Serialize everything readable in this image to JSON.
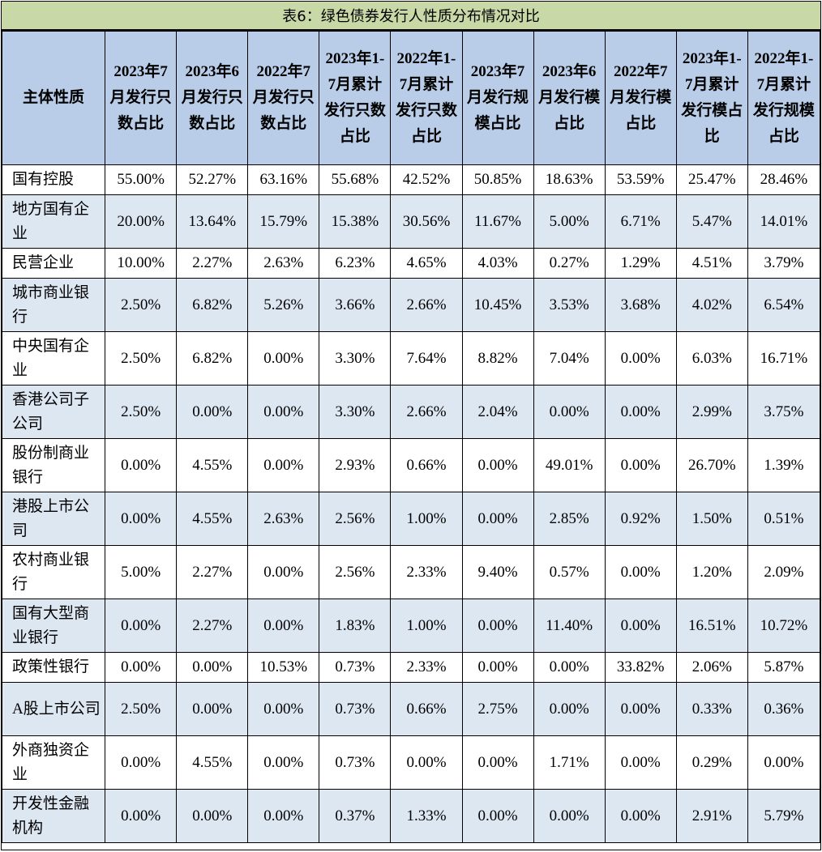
{
  "title": "表6：绿色债券发行人性质分布情况对比",
  "header_first": "主体性质",
  "columns": [
    "2023年7月发行只数占比",
    "2023年6月发行只数占比",
    "2022年7月发行只数占比",
    "2023年1-7月累计发行只数占比",
    "2022年1-7月累计发行只数占比",
    "2023年7月发行规模占比",
    "2023年6月发行模占比",
    "2022年7月发行模占比",
    "2023年1-7月累计发行模占比",
    "2022年1-7月累计发行规模占比"
  ],
  "rows": [
    {
      "name": "国有控股",
      "values": [
        "55.00%",
        "52.27%",
        "63.16%",
        "55.68%",
        "42.52%",
        "50.85%",
        "18.63%",
        "53.59%",
        "25.47%",
        "28.46%"
      ]
    },
    {
      "name": "地方国有企业",
      "values": [
        "20.00%",
        "13.64%",
        "15.79%",
        "15.38%",
        "30.56%",
        "11.67%",
        "5.00%",
        "6.71%",
        "5.47%",
        "14.01%"
      ]
    },
    {
      "name": "民营企业",
      "values": [
        "10.00%",
        "2.27%",
        "2.63%",
        "6.23%",
        "4.65%",
        "4.03%",
        "0.27%",
        "1.29%",
        "4.51%",
        "3.79%"
      ]
    },
    {
      "name": "城市商业银行",
      "values": [
        "2.50%",
        "6.82%",
        "5.26%",
        "3.66%",
        "2.66%",
        "10.45%",
        "3.53%",
        "3.68%",
        "4.02%",
        "6.54%"
      ]
    },
    {
      "name": "中央国有企业",
      "values": [
        "2.50%",
        "6.82%",
        "0.00%",
        "3.30%",
        "7.64%",
        "8.82%",
        "7.04%",
        "0.00%",
        "6.03%",
        "16.71%"
      ]
    },
    {
      "name": "香港公司子公司",
      "values": [
        "2.50%",
        "0.00%",
        "0.00%",
        "3.30%",
        "2.66%",
        "2.04%",
        "0.00%",
        "0.00%",
        "2.99%",
        "3.75%"
      ]
    },
    {
      "name": "股份制商业银行",
      "values": [
        "0.00%",
        "4.55%",
        "0.00%",
        "2.93%",
        "0.66%",
        "0.00%",
        "49.01%",
        "0.00%",
        "26.70%",
        "1.39%"
      ]
    },
    {
      "name": "港股上市公司",
      "values": [
        "0.00%",
        "4.55%",
        "2.63%",
        "2.56%",
        "1.00%",
        "0.00%",
        "2.85%",
        "0.92%",
        "1.50%",
        "0.51%"
      ]
    },
    {
      "name": "农村商业银行",
      "values": [
        "5.00%",
        "2.27%",
        "0.00%",
        "2.56%",
        "2.33%",
        "9.40%",
        "0.57%",
        "0.00%",
        "1.20%",
        "2.09%"
      ]
    },
    {
      "name": "国有大型商业银行",
      "values": [
        "0.00%",
        "2.27%",
        "0.00%",
        "1.83%",
        "1.00%",
        "0.00%",
        "11.40%",
        "0.00%",
        "16.51%",
        "10.72%"
      ]
    },
    {
      "name": "政策性银行",
      "values": [
        "0.00%",
        "0.00%",
        "10.53%",
        "0.73%",
        "2.33%",
        "0.00%",
        "0.00%",
        "33.82%",
        "2.06%",
        "5.87%"
      ]
    },
    {
      "name": "A股上市公司",
      "values": [
        "2.50%",
        "0.00%",
        "0.00%",
        "0.73%",
        "0.66%",
        "2.75%",
        "0.00%",
        "0.00%",
        "0.33%",
        "0.36%"
      ]
    },
    {
      "name": "外商独资企业",
      "values": [
        "0.00%",
        "4.55%",
        "0.00%",
        "0.73%",
        "0.00%",
        "0.00%",
        "1.71%",
        "0.00%",
        "0.29%",
        "0.00%"
      ]
    },
    {
      "name": "开发性金融机构",
      "values": [
        "0.00%",
        "0.00%",
        "0.00%",
        "0.37%",
        "1.33%",
        "0.00%",
        "0.00%",
        "0.00%",
        "2.91%",
        "5.79%"
      ]
    }
  ]
}
